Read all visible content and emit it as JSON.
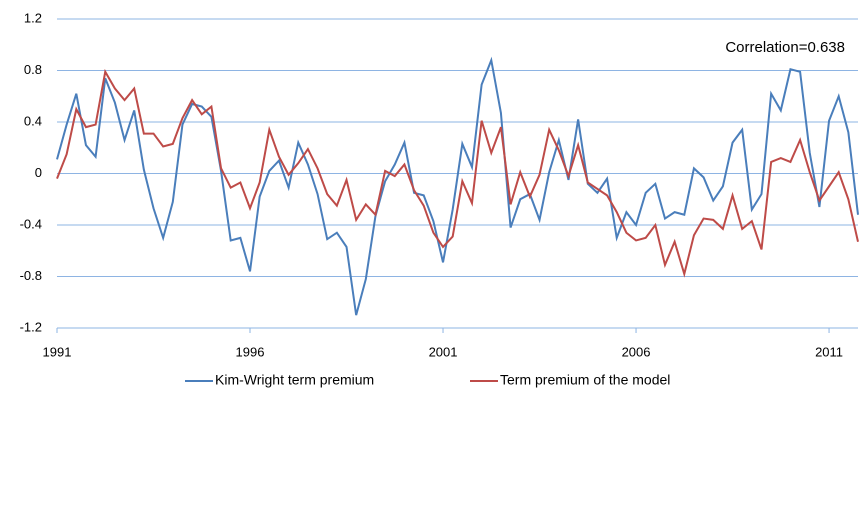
{
  "chart_data": {
    "type": "line",
    "annotation": "Correlation=0.638",
    "x": [
      1991,
      1991.25,
      1991.5,
      1991.75,
      1992,
      1992.25,
      1992.5,
      1992.75,
      1993,
      1993.25,
      1993.5,
      1993.75,
      1994,
      1994.25,
      1994.5,
      1994.75,
      1995,
      1995.25,
      1995.5,
      1995.75,
      1996,
      1996.25,
      1996.5,
      1996.75,
      1997,
      1997.25,
      1997.5,
      1997.75,
      1998,
      1998.25,
      1998.5,
      1998.75,
      1999,
      1999.25,
      1999.5,
      1999.75,
      2000,
      2000.25,
      2000.5,
      2000.75,
      2001,
      2001.25,
      2001.5,
      2001.75,
      2002,
      2002.25,
      2002.5,
      2002.75,
      2003,
      2003.25,
      2003.5,
      2003.75,
      2004,
      2004.25,
      2004.5,
      2004.75,
      2005,
      2005.25,
      2005.5,
      2005.75,
      2006,
      2006.25,
      2006.5,
      2006.75,
      2007,
      2007.25,
      2007.5,
      2007.75,
      2008,
      2008.25,
      2008.5,
      2008.75,
      2009,
      2009.25,
      2009.5,
      2009.75,
      2010,
      2010.25,
      2010.5,
      2010.75,
      2011,
      2011.25,
      2011.5,
      2011.75
    ],
    "series": [
      {
        "name": "Kim-Wright term premium",
        "color": "#4a7ebb",
        "values": [
          0.11,
          0.38,
          0.62,
          0.22,
          0.13,
          0.74,
          0.55,
          0.26,
          0.49,
          0.03,
          -0.27,
          -0.5,
          -0.22,
          0.38,
          0.54,
          0.52,
          0.44,
          0.02,
          -0.52,
          -0.5,
          -0.76,
          -0.18,
          0.02,
          0.1,
          -0.11,
          0.24,
          0.07,
          -0.16,
          -0.51,
          -0.46,
          -0.57,
          -1.1,
          -0.82,
          -0.33,
          -0.06,
          0.07,
          0.24,
          -0.15,
          -0.17,
          -0.37,
          -0.69,
          -0.28,
          0.23,
          0.05,
          0.69,
          0.88,
          0.47,
          -0.42,
          -0.2,
          -0.16,
          -0.36,
          0.01,
          0.26,
          -0.05,
          0.42,
          -0.08,
          -0.15,
          -0.04,
          -0.5,
          -0.3,
          -0.4,
          -0.15,
          -0.08,
          -0.35,
          -0.3,
          -0.32,
          0.04,
          -0.03,
          -0.21,
          -0.1,
          0.24,
          0.34,
          -0.28,
          -0.16,
          0.62,
          0.49,
          0.81,
          0.79,
          0.16,
          -0.26,
          0.41,
          0.6,
          0.32,
          -0.32
        ]
      },
      {
        "name": "Term premium of the model",
        "color": "#be4b48",
        "values": [
          -0.04,
          0.15,
          0.5,
          0.36,
          0.38,
          0.79,
          0.66,
          0.57,
          0.66,
          0.31,
          0.31,
          0.21,
          0.23,
          0.43,
          0.57,
          0.46,
          0.52,
          0.04,
          -0.11,
          -0.07,
          -0.27,
          -0.07,
          0.34,
          0.13,
          -0.01,
          0.08,
          0.19,
          0.04,
          -0.16,
          -0.25,
          -0.05,
          -0.36,
          -0.24,
          -0.32,
          0.02,
          -0.02,
          0.07,
          -0.13,
          -0.25,
          -0.46,
          -0.57,
          -0.49,
          -0.06,
          -0.23,
          0.41,
          0.16,
          0.36,
          -0.24,
          0.01,
          -0.18,
          -0.01,
          0.34,
          0.18,
          -0.02,
          0.22,
          -0.07,
          -0.12,
          -0.17,
          -0.3,
          -0.46,
          -0.52,
          -0.5,
          -0.4,
          -0.71,
          -0.53,
          -0.78,
          -0.48,
          -0.35,
          -0.36,
          -0.43,
          -0.17,
          -0.43,
          -0.37,
          -0.59,
          0.09,
          0.12,
          0.09,
          0.26,
          0.01,
          -0.21,
          -0.1,
          0.01,
          -0.2,
          -0.53
        ]
      }
    ],
    "xlim": [
      1991,
      2011.75
    ],
    "xticks": [
      1991,
      1996,
      2001,
      2006,
      2011
    ],
    "ylim": [
      -1.2,
      1.2
    ],
    "yticks": [
      -1.2,
      -0.8,
      -0.4,
      0,
      0.4,
      0.8,
      1.2
    ],
    "grid": true,
    "legend": "bottom"
  }
}
